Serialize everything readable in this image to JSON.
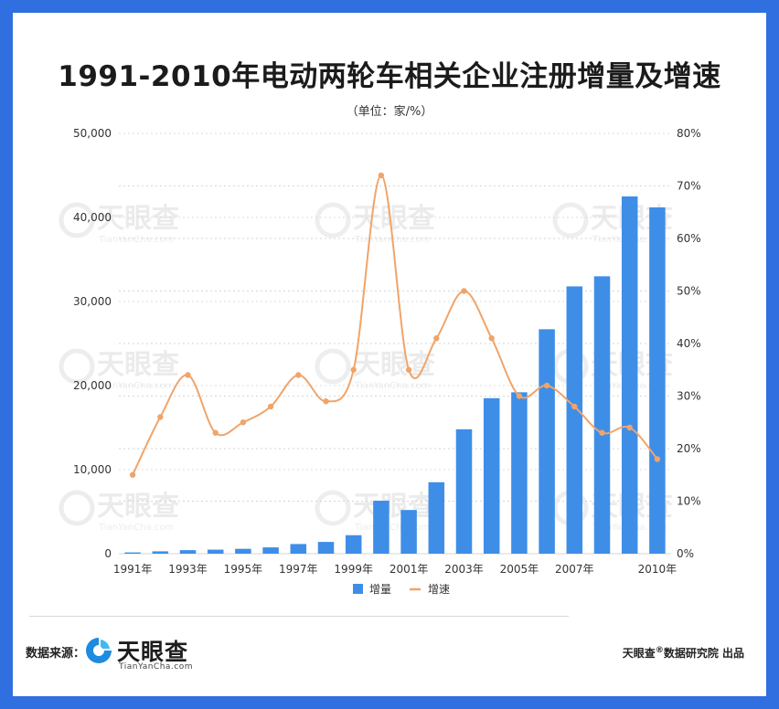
{
  "title": "1991-2010年电动两轮车相关企业注册增量及增速",
  "subtitle": "（单位：家/%）",
  "watermark": "天眼查",
  "watermark_sub": "TianYanCha.com",
  "footer": {
    "source_label": "数据来源：",
    "logo_name": "天眼查",
    "logo_sub": "TianYanCha.com",
    "right_brand": "天眼查",
    "right_reg": "®",
    "right_rest": "数据研究院 出品"
  },
  "colors": {
    "background": "#2f6fe0",
    "bar": "#3e8ee8",
    "line": "#f0a46a",
    "logo": "#1e8be0"
  },
  "chart_data": {
    "type": "bar",
    "categories": [
      "1991年",
      "1992年",
      "1993年",
      "1994年",
      "1995年",
      "1996年",
      "1997年",
      "1998年",
      "1999年",
      "2000年",
      "2001年",
      "2002年",
      "2003年",
      "2004年",
      "2005年",
      "2006年",
      "2007年",
      "2008年",
      "2009年",
      "2010年"
    ],
    "x_tick_labels": [
      "1991年",
      "",
      "1993年",
      "",
      "1995年",
      "",
      "1997年",
      "",
      "1999年",
      "",
      "2001年",
      "",
      "2003年",
      "",
      "2005年",
      "",
      "2007年",
      "",
      "",
      "2010年"
    ],
    "series": [
      {
        "name": "增量",
        "type": "bar",
        "axis": "left",
        "values": [
          150,
          280,
          420,
          480,
          580,
          750,
          1150,
          1400,
          2200,
          6300,
          5200,
          8500,
          14800,
          18500,
          19200,
          26700,
          31800,
          33000,
          42500,
          41200
        ]
      },
      {
        "name": "增速",
        "type": "line",
        "axis": "right",
        "smooth": true,
        "values": [
          15,
          26,
          34,
          23,
          25,
          28,
          34,
          29,
          35,
          72,
          35,
          41,
          50,
          41,
          30,
          32,
          28,
          23,
          24,
          18
        ]
      }
    ],
    "y_left": {
      "min": 0,
      "max": 50000,
      "ticks": [
        "0",
        "10,000",
        "20,000",
        "30,000",
        "40,000",
        "50,000"
      ]
    },
    "y_right": {
      "min": 0,
      "max": 80,
      "ticks": [
        "0%",
        "10%",
        "20%",
        "30%",
        "40%",
        "50%",
        "60%",
        "70%",
        "80%"
      ]
    },
    "grid": "horizontal dotted",
    "legend_position": "bottom-center"
  }
}
